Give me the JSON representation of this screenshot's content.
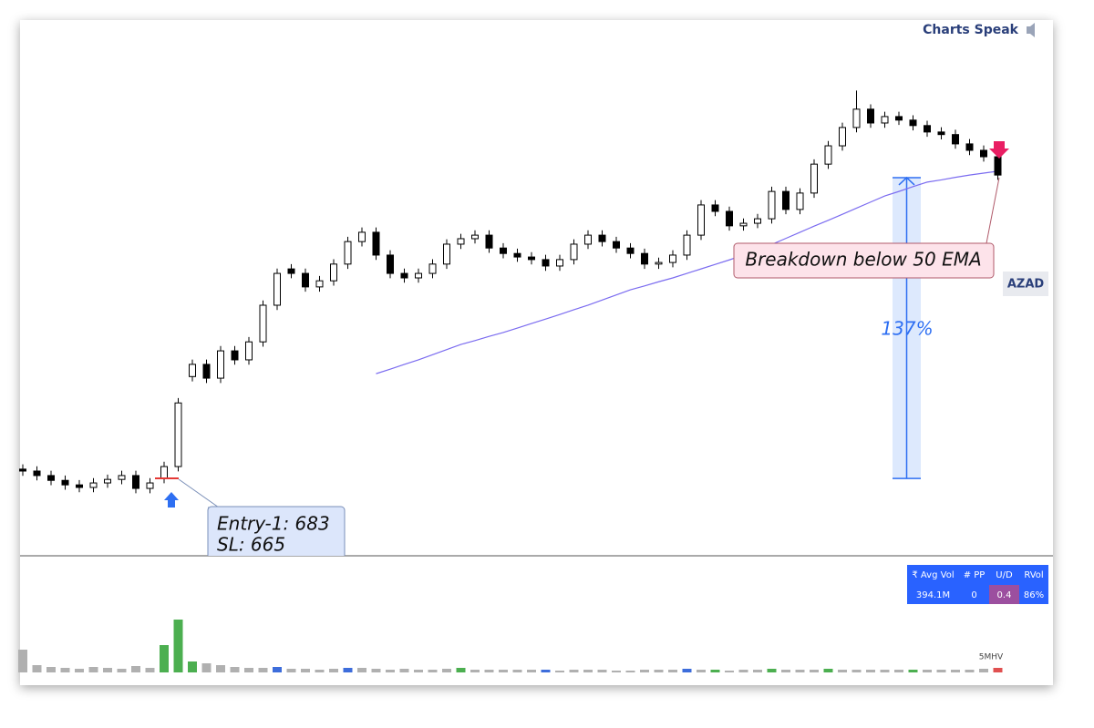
{
  "header": {
    "brand": "Charts Speak"
  },
  "chart_data": {
    "type": "candlestick",
    "symbol": "AZAD",
    "up_color": "#ffffff",
    "down_color": "#000000",
    "ylim": [
      448,
      2115
    ],
    "open": [
      712,
      706,
      692,
      677,
      663,
      655,
      669,
      680,
      692,
      652,
      683,
      720,
      1000,
      1038,
      995,
      1080,
      1052,
      1108,
      1222,
      1335,
      1321,
      1279,
      1298,
      1350,
      1420,
      1449,
      1378,
      1321,
      1307,
      1321,
      1350,
      1412,
      1429,
      1440,
      1400,
      1383,
      1372,
      1364,
      1344,
      1364,
      1412,
      1440,
      1420,
      1400,
      1383,
      1350,
      1355,
      1378,
      1440,
      1534,
      1514,
      1469,
      1477,
      1491,
      1576,
      1520,
      1571,
      1661,
      1718,
      1775,
      1832,
      1789,
      1809,
      1798,
      1781,
      1761,
      1753,
      1724,
      1704,
      1684
    ],
    "high": [
      727,
      721,
      707,
      692,
      678,
      684,
      695,
      707,
      707,
      684,
      735,
      933,
      1053,
      1053,
      1095,
      1095,
      1123,
      1237,
      1336,
      1350,
      1336,
      1313,
      1365,
      1435,
      1464,
      1464,
      1393,
      1336,
      1336,
      1365,
      1427,
      1444,
      1455,
      1455,
      1415,
      1398,
      1387,
      1379,
      1379,
      1427,
      1455,
      1455,
      1435,
      1415,
      1398,
      1370,
      1393,
      1455,
      1549,
      1549,
      1529,
      1492,
      1506,
      1591,
      1591,
      1586,
      1676,
      1733,
      1790,
      1890,
      1847,
      1824,
      1824,
      1813,
      1796,
      1776,
      1768,
      1739,
      1719,
      1699
    ],
    "low": [
      691,
      677,
      662,
      648,
      640,
      640,
      654,
      665,
      637,
      637,
      668,
      705,
      985,
      980,
      980,
      1037,
      1037,
      1093,
      1207,
      1306,
      1264,
      1264,
      1283,
      1335,
      1405,
      1363,
      1306,
      1292,
      1292,
      1306,
      1335,
      1397,
      1414,
      1385,
      1368,
      1357,
      1349,
      1329,
      1329,
      1349,
      1397,
      1405,
      1385,
      1368,
      1335,
      1335,
      1340,
      1363,
      1425,
      1499,
      1454,
      1454,
      1462,
      1476,
      1505,
      1505,
      1556,
      1646,
      1703,
      1760,
      1774,
      1774,
      1783,
      1766,
      1746,
      1738,
      1709,
      1689,
      1669,
      1612
    ],
    "close": [
      706,
      692,
      677,
      663,
      655,
      669,
      680,
      692,
      652,
      669,
      720,
      918,
      1038,
      995,
      1080,
      1052,
      1108,
      1222,
      1321,
      1321,
      1279,
      1298,
      1350,
      1420,
      1449,
      1378,
      1321,
      1307,
      1321,
      1350,
      1412,
      1429,
      1440,
      1400,
      1383,
      1372,
      1364,
      1344,
      1364,
      1412,
      1440,
      1420,
      1400,
      1383,
      1350,
      1355,
      1378,
      1440,
      1534,
      1514,
      1469,
      1477,
      1491,
      1576,
      1520,
      1571,
      1661,
      1718,
      1775,
      1832,
      1789,
      1809,
      1798,
      1781,
      1761,
      1753,
      1724,
      1704,
      1684,
      1627
    ],
    "ema": {
      "color": "#7b6cf0",
      "values": [
        null,
        null,
        null,
        null,
        null,
        null,
        null,
        null,
        null,
        null,
        null,
        null,
        null,
        null,
        null,
        null,
        null,
        null,
        null,
        null,
        null,
        null,
        null,
        null,
        null,
        1009,
        1023,
        1038,
        1052,
        1068,
        1084,
        1100,
        1112,
        1125,
        1137,
        1151,
        1165,
        1179,
        1193,
        1208,
        1222,
        1238,
        1254,
        1270,
        1282,
        1295,
        1307,
        1321,
        1335,
        1349,
        1363,
        1378,
        1392,
        1411,
        1430,
        1449,
        1468,
        1486,
        1505,
        1524,
        1543,
        1562,
        1576,
        1591,
        1605,
        1612,
        1620,
        1627,
        1633,
        1639
      ]
    },
    "volume": {
      "ylim": [
        0,
        60
      ],
      "note": "5MHV",
      "values": [
        25,
        8,
        6,
        5,
        4,
        6,
        5,
        4,
        7,
        5,
        30,
        58,
        12,
        10,
        8,
        6,
        5,
        5,
        6,
        4,
        4,
        3,
        4,
        5,
        5,
        4,
        3,
        4,
        3,
        3,
        4,
        5,
        3,
        3,
        3,
        3,
        3,
        3,
        2,
        3,
        3,
        3,
        2,
        2,
        3,
        3,
        3,
        4,
        3,
        3,
        2,
        3,
        3,
        4,
        3,
        3,
        3,
        4,
        3,
        3,
        3,
        3,
        3,
        3,
        3,
        3,
        3,
        3,
        4,
        5
      ],
      "colors": [
        "#b0b0b0",
        "#b0b0b0",
        "#b0b0b0",
        "#b0b0b0",
        "#b0b0b0",
        "#b0b0b0",
        "#b0b0b0",
        "#b0b0b0",
        "#b0b0b0",
        "#b0b0b0",
        "#4caf50",
        "#4caf50",
        "#4caf50",
        "#b0b0b0",
        "#b0b0b0",
        "#b0b0b0",
        "#b0b0b0",
        "#b0b0b0",
        "#3d6ddb",
        "#b0b0b0",
        "#b0b0b0",
        "#b0b0b0",
        "#b0b0b0",
        "#3d6ddb",
        "#b0b0b0",
        "#b0b0b0",
        "#b0b0b0",
        "#b0b0b0",
        "#b0b0b0",
        "#b0b0b0",
        "#b0b0b0",
        "#4caf50",
        "#b0b0b0",
        "#b0b0b0",
        "#b0b0b0",
        "#b0b0b0",
        "#b0b0b0",
        "#3d6ddb",
        "#b0b0b0",
        "#b0b0b0",
        "#b0b0b0",
        "#b0b0b0",
        "#b0b0b0",
        "#b0b0b0",
        "#b0b0b0",
        "#b0b0b0",
        "#b0b0b0",
        "#3d6ddb",
        "#b0b0b0",
        "#4caf50",
        "#b0b0b0",
        "#b0b0b0",
        "#b0b0b0",
        "#4caf50",
        "#b0b0b0",
        "#b0b0b0",
        "#b0b0b0",
        "#4caf50",
        "#b0b0b0",
        "#b0b0b0",
        "#b0b0b0",
        "#b0b0b0",
        "#b0b0b0",
        "#4caf50",
        "#b0b0b0",
        "#b0b0b0",
        "#b0b0b0",
        "#b0b0b0",
        "#b0b0b0",
        "#e05050"
      ]
    },
    "measure": {
      "from": 683,
      "to": 1619,
      "label": "137%"
    },
    "annotations": {
      "breakdown": "Breakdown below 50 EMA",
      "entry": [
        "Entry-1: 683",
        "SL: 665"
      ]
    }
  },
  "stats_table": {
    "headers": [
      "₹ Avg Vol",
      "# PP",
      "U/D",
      "RVol"
    ],
    "row": [
      "394.1M",
      "0",
      "0.4",
      "86%"
    ]
  }
}
